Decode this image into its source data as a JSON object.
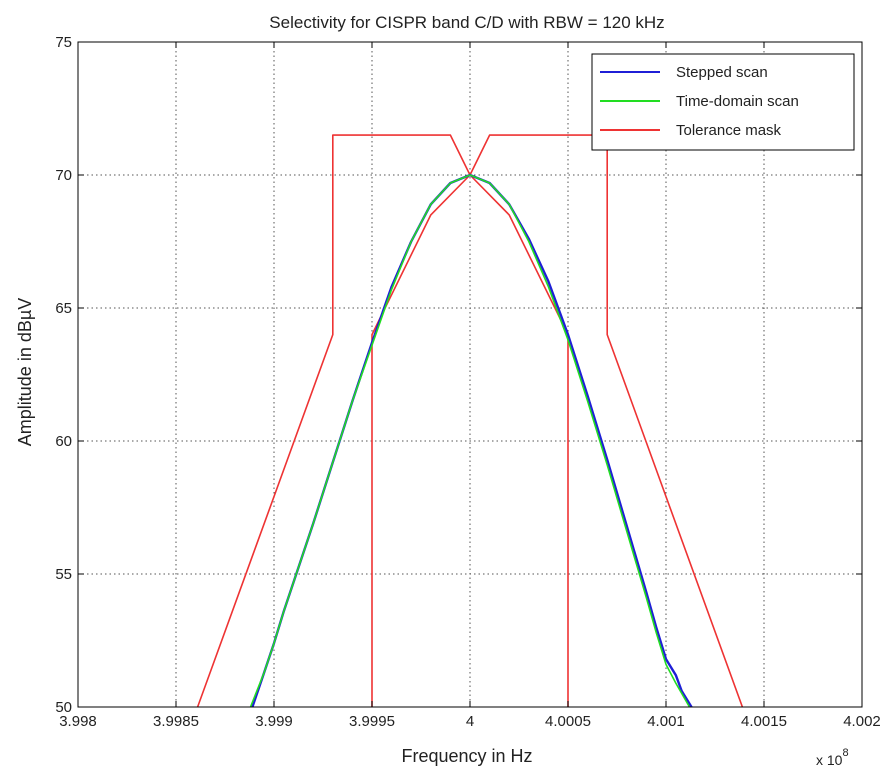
{
  "chart_data": {
    "type": "line",
    "title": "Selectivity for CISPR band C/D with RBW = 120 kHz",
    "xlabel": "Frequency in Hz",
    "ylabel": "Amplitude in dBµV",
    "x_exponent_label": "x 10",
    "x_exponent_power": "8",
    "xlim": [
      3.998,
      4.002
    ],
    "ylim": [
      50,
      75
    ],
    "x_ticks": [
      3.998,
      3.9985,
      3.999,
      3.9995,
      4.0,
      4.0005,
      4.001,
      4.0015,
      4.002
    ],
    "x_tick_labels": [
      "3.998",
      "3.9985",
      "3.999",
      "3.9995",
      "4",
      "4.0005",
      "4.001",
      "4.0015",
      "4.002"
    ],
    "y_ticks": [
      50,
      55,
      60,
      65,
      70,
      75
    ],
    "y_tick_labels": [
      "50",
      "55",
      "60",
      "65",
      "70",
      "75"
    ],
    "grid": true,
    "legend_position": "top-right",
    "series": [
      {
        "name": "Stepped scan",
        "color": "#1f1fd6",
        "x": [
          3.99889,
          3.99895,
          3.999,
          3.99905,
          3.9991,
          3.9992,
          3.9993,
          3.9994,
          3.9995,
          3.9996,
          3.9997,
          3.9998,
          3.9999,
          4.0,
          4.0001,
          4.0002,
          4.0003,
          4.0004,
          4.0005,
          4.0006,
          4.0007,
          4.0008,
          4.0009,
          4.00095,
          4.001,
          4.00105,
          4.00108,
          4.00113
        ],
        "y": [
          50.0,
          51.3,
          52.4,
          53.6,
          54.7,
          56.9,
          59.2,
          61.5,
          63.7,
          65.8,
          67.5,
          68.9,
          69.7,
          70.0,
          69.7,
          68.9,
          67.6,
          66.0,
          64.0,
          61.7,
          59.3,
          56.8,
          54.3,
          53.0,
          51.8,
          51.2,
          50.6,
          50.0
        ]
      },
      {
        "name": "Time-domain scan",
        "color": "#22dd22",
        "x": [
          3.99888,
          3.99895,
          3.999,
          3.99905,
          3.9991,
          3.9992,
          3.9993,
          3.9994,
          3.9995,
          3.9996,
          3.9997,
          3.9998,
          3.9999,
          4.0,
          4.0001,
          4.0002,
          4.0003,
          4.0004,
          4.0005,
          4.0006,
          4.0007,
          4.0008,
          4.0009,
          4.00095,
          4.001,
          4.00105,
          4.00112
        ],
        "y": [
          50.0,
          51.3,
          52.4,
          53.6,
          54.7,
          56.9,
          59.2,
          61.5,
          63.6,
          65.7,
          67.5,
          68.9,
          69.7,
          70.0,
          69.7,
          68.9,
          67.5,
          65.8,
          63.8,
          61.5,
          59.1,
          56.6,
          54.1,
          52.8,
          51.6,
          50.9,
          50.0
        ]
      },
      {
        "name": "Tolerance mask",
        "color": "#ee3333",
        "segments": [
          {
            "x": [
              3.99861,
              3.9993,
              3.9993,
              3.9999,
              4.0,
              4.0001,
              4.0007,
              4.0007,
              4.00139
            ],
            "y": [
              50.0,
              64.0,
              71.5,
              71.5,
              70.0,
              71.5,
              71.5,
              64.0,
              50.0
            ]
          },
          {
            "x": [
              3.9995,
              3.9995,
              3.9998,
              4.0,
              4.0002,
              4.0005,
              4.0005
            ],
            "y": [
              50.0,
              64.0,
              68.5,
              70.0,
              68.5,
              64.0,
              50.0
            ]
          }
        ]
      }
    ]
  }
}
